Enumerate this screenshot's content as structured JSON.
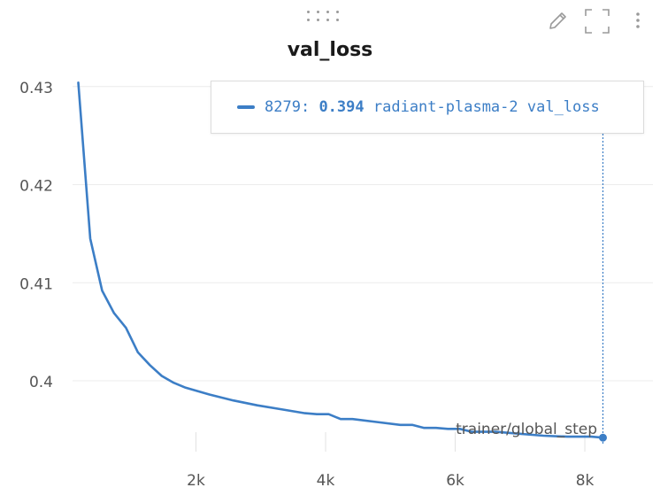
{
  "panel": {
    "title": "val_loss",
    "icons": [
      "drag-handle-icon",
      "pencil-icon",
      "fullscreen-icon",
      "more-vertical-icon"
    ]
  },
  "colors": {
    "series": "#3c7ec6",
    "grid": "#ececec",
    "tick_text": "#555555"
  },
  "tooltip": {
    "step": "8279:",
    "value": "0.394",
    "run_name": "radiant-plasma-2 val_loss"
  },
  "chart_data": {
    "type": "line",
    "title": "val_loss",
    "xlabel": "trainer/global_step",
    "ylabel": "",
    "xlim": [
      0,
      8600
    ],
    "ylim": [
      0.3935,
      0.4307
    ],
    "xticks": [
      2000,
      4000,
      6000,
      8000
    ],
    "xtick_labels": [
      "2k",
      "4k",
      "6k",
      "8k"
    ],
    "yticks": [
      0.4,
      0.41,
      0.42,
      0.43
    ],
    "ytick_labels": [
      "0.4",
      "0.41",
      "0.42",
      "0.43"
    ],
    "grid": true,
    "hover_x": 8279,
    "series": [
      {
        "name": "radiant-plasma-2 val_loss",
        "x": [
          184,
          368,
          552,
          736,
          920,
          1104,
          1288,
          1472,
          1656,
          1840,
          2208,
          2576,
          2944,
          3312,
          3680,
          3864,
          4048,
          4232,
          4416,
          4784,
          5152,
          5336,
          5520,
          5704,
          5888,
          6072,
          6256,
          6624,
          6992,
          7360,
          7728,
          8096,
          8279
        ],
        "y": [
          0.4304,
          0.4145,
          0.4092,
          0.4069,
          0.4054,
          0.4029,
          0.4016,
          0.4005,
          0.3998,
          0.3993,
          0.3986,
          0.398,
          0.3975,
          0.3971,
          0.3967,
          0.3966,
          0.3966,
          0.3961,
          0.3961,
          0.3958,
          0.3955,
          0.3955,
          0.3952,
          0.3952,
          0.3951,
          0.3951,
          0.3948,
          0.3948,
          0.3946,
          0.3944,
          0.3943,
          0.3943,
          0.3942
        ]
      }
    ]
  }
}
